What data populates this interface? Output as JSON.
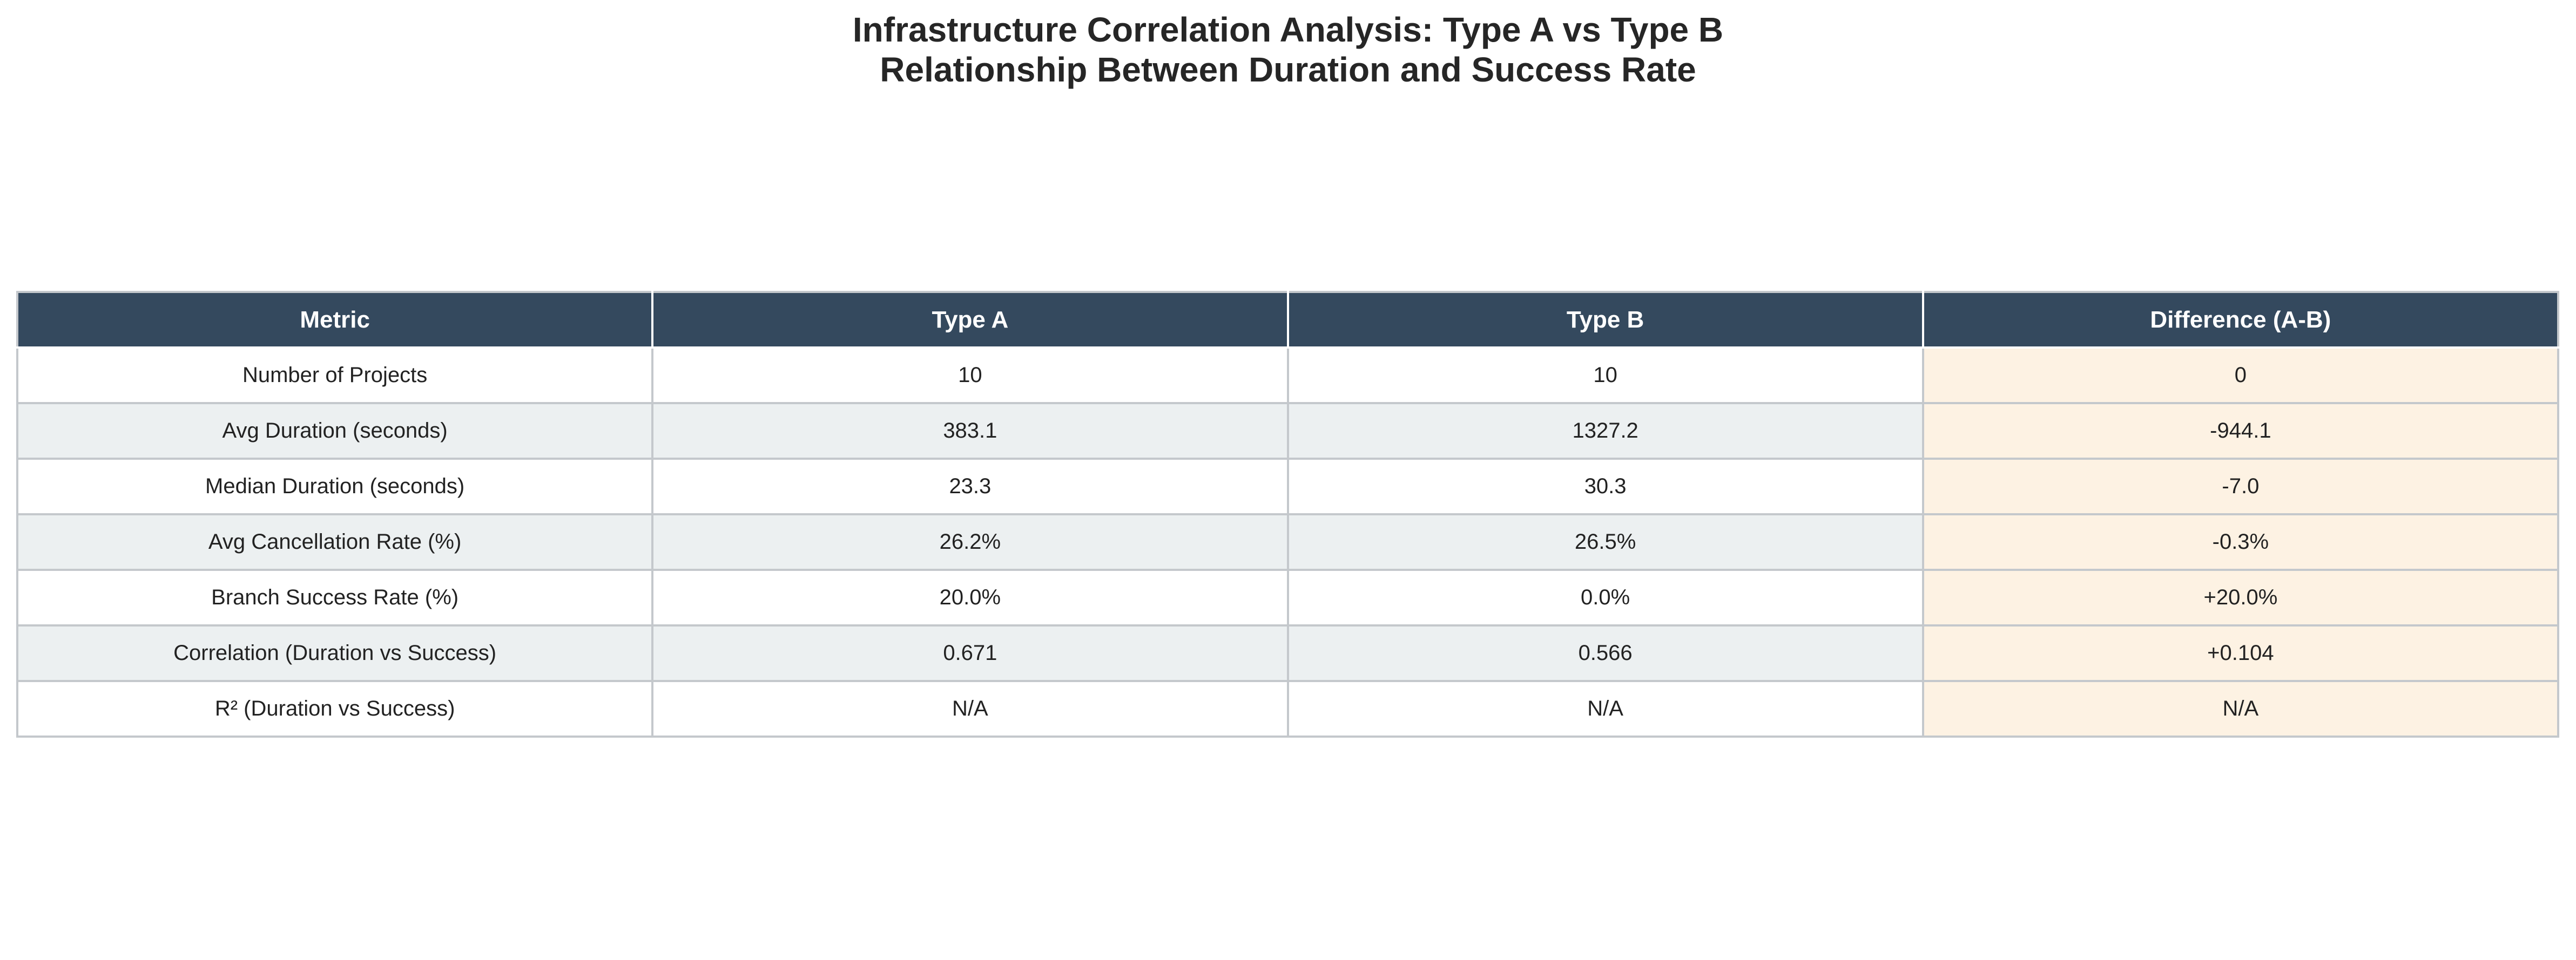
{
  "title": {
    "line1": "Infrastructure Correlation Analysis: Type A vs Type B",
    "line2": "Relationship Between Duration and Success Rate"
  },
  "colors": {
    "header_bg": "#34495e",
    "header_text": "#ffffff",
    "row_alt_bg": "#ecf0f1",
    "difference_col_bg": "#fdf2e3",
    "grid_line": "#c4c8cc"
  },
  "chart_data": {
    "type": "table",
    "columns": [
      "Metric",
      "Type A",
      "Type B",
      "Difference (A-B)"
    ],
    "rows": [
      [
        "Number of Projects",
        "10",
        "10",
        "0"
      ],
      [
        "Avg Duration (seconds)",
        "383.1",
        "1327.2",
        "-944.1"
      ],
      [
        "Median Duration (seconds)",
        "23.3",
        "30.3",
        "-7.0"
      ],
      [
        "Avg Cancellation Rate (%)",
        "26.2%",
        "26.5%",
        "-0.3%"
      ],
      [
        "Branch Success Rate (%)",
        "20.0%",
        "0.0%",
        "+20.0%"
      ],
      [
        "Correlation (Duration vs Success)",
        "0.671",
        "0.566",
        "+0.104"
      ],
      [
        "R² (Duration vs Success)",
        "N/A",
        "N/A",
        "N/A"
      ]
    ]
  }
}
